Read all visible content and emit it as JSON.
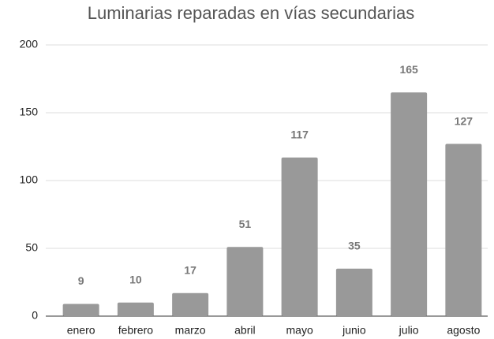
{
  "chart_data": {
    "type": "bar",
    "title": "Luminarias reparadas en vías secundarias",
    "categories": [
      "enero",
      "febrero",
      "marzo",
      "abril",
      "mayo",
      "junio",
      "julio",
      "agosto"
    ],
    "values": [
      9,
      10,
      17,
      51,
      117,
      35,
      165,
      127
    ],
    "color": "#999999",
    "ylim": [
      0,
      200
    ],
    "yticks": [
      0,
      50,
      100,
      150,
      200
    ],
    "grid": true
  }
}
